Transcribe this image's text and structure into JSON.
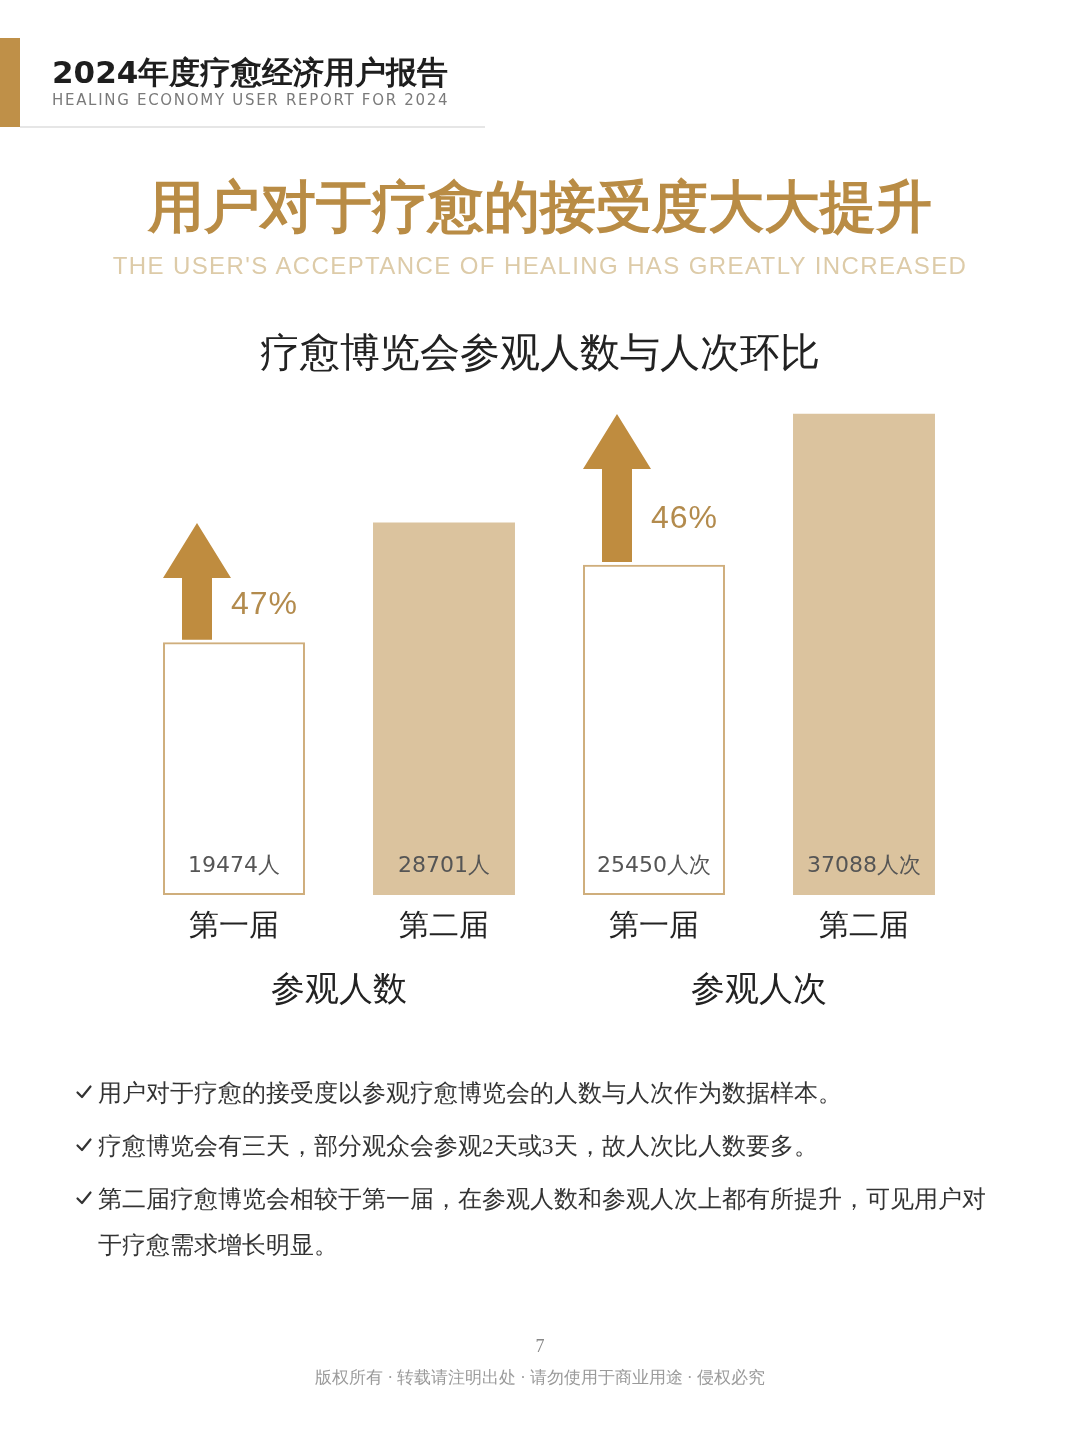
{
  "chart_data": {
    "type": "bar",
    "title": "疗愈博览会参观人数与人次环比",
    "categories": [
      "第一届",
      "第二届",
      "第一届",
      "第二届"
    ],
    "values": [
      19474,
      28701,
      25450,
      37088
    ],
    "colors": [
      "#cfae7c",
      "#dbc39e",
      "#cfae7c",
      "#dbc39e"
    ],
    "value_labels": [
      "19474人",
      "28701人",
      "25450人次",
      "37088人次"
    ],
    "tick_labels": "x",
    "annotations": [
      "2024年度疗愈经济用户报告",
      "HEALING ECONOMY USER REPORT FOR 2024",
      "用户对于疗愈的接受度大大提升",
      "THE USER'S ACCEPTANCE OF HEALING HAS GREATLY INCREASED",
      "47%",
      "46%",
      "参观人数",
      "参观人次",
      "用户对于疗愈的接受度以参观疗愈博览会的人数与人次作为数据样本。",
      "疗愈博览会有三天，部分观众会参观2天或3天，故人次比人数要多。",
      "第二届疗愈博览会相较于第一届，在参观人数和参观人次上都有所提升，可见用户对于疗愈需求增长明显。",
      "7",
      "版权所有 · 转载请注明出处 · 请勿使用于商业用途 · 侵权必究"
    ]
  }
}
